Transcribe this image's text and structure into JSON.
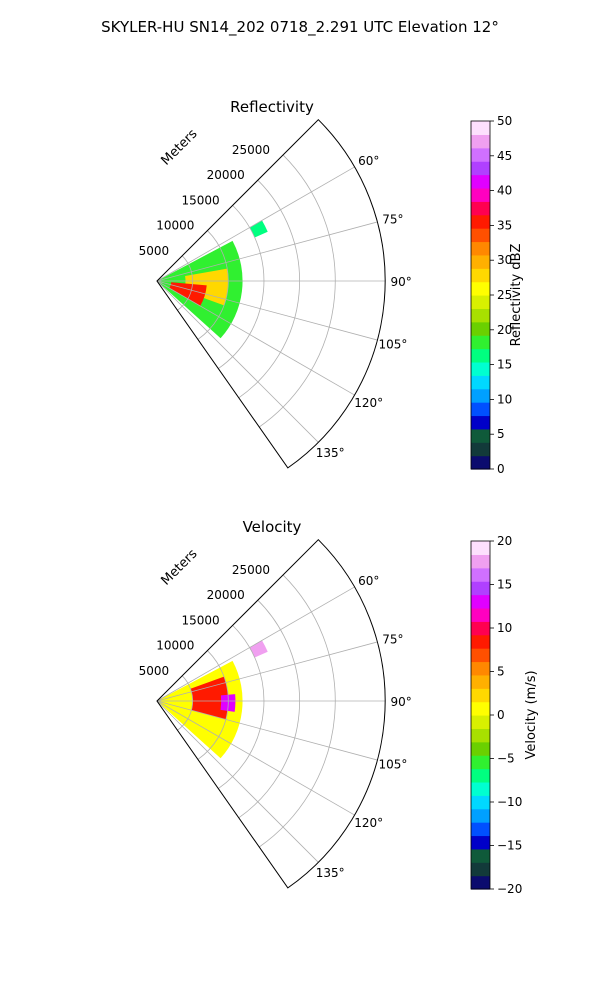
{
  "figure": {
    "suptitle": "SKYLER-HU  SN14_202  0718_2.291 UTC Elevation 12°"
  },
  "chart_data": [
    {
      "type": "heatmap",
      "projection": "polar sector",
      "title": "Reflectivity",
      "radial_label": "Meters",
      "radial_ticks": [
        5000,
        10000,
        15000,
        20000,
        25000
      ],
      "radial_tick_labels": [
        "5000",
        "10000",
        "15000",
        "20000",
        "25000"
      ],
      "rlim": [
        0,
        32000
      ],
      "theta_ticks_deg": [
        60,
        75,
        90,
        105,
        120,
        135
      ],
      "theta_tick_labels": [
        "60°",
        "75°",
        "90°",
        "105°",
        "120°",
        "135°"
      ],
      "theta_range_deg": [
        45,
        145
      ],
      "grid": true,
      "colorbar": {
        "label": "Reflectivity dBZ",
        "range": [
          0,
          50
        ],
        "ticks": [
          0,
          5,
          10,
          15,
          20,
          25,
          30,
          35,
          40,
          45,
          50
        ],
        "tick_labels": [
          "0",
          "5",
          "10",
          "15",
          "20",
          "25",
          "30",
          "35",
          "40",
          "45",
          "50"
        ],
        "colors": [
          "#0b0b6e",
          "#123a3a",
          "#0f5a3a",
          "#0000c8",
          "#0050ff",
          "#00a0ff",
          "#00d8ff",
          "#00ffd0",
          "#00ff80",
          "#30f030",
          "#6ad000",
          "#a8e000",
          "#d8f000",
          "#ffff00",
          "#ffd800",
          "#ffb000",
          "#ff8800",
          "#ff5000",
          "#ff1a00",
          "#ff0050",
          "#ff00c0",
          "#e000ff",
          "#b040ff",
          "#d070ff",
          "#f0a0f0",
          "#fde0fd"
        ]
      },
      "echo_regions": [
        {
          "r_km": [
            0,
            12
          ],
          "theta_deg": [
            62,
            132
          ],
          "dbz": 18
        },
        {
          "r_km": [
            4,
            10
          ],
          "theta_deg": [
            80,
            110
          ],
          "dbz": 27
        },
        {
          "r_km": [
            2,
            7
          ],
          "theta_deg": [
            95,
            120
          ],
          "dbz": 35
        },
        {
          "r_km": [
            15,
            17
          ],
          "theta_deg": [
            60,
            66
          ],
          "dbz": 16
        }
      ]
    },
    {
      "type": "heatmap",
      "projection": "polar sector",
      "title": "Velocity",
      "radial_label": "Meters",
      "radial_ticks": [
        5000,
        10000,
        15000,
        20000,
        25000
      ],
      "radial_tick_labels": [
        "5000",
        "10000",
        "15000",
        "20000",
        "25000"
      ],
      "rlim": [
        0,
        32000
      ],
      "theta_ticks_deg": [
        60,
        75,
        90,
        105,
        120,
        135
      ],
      "theta_tick_labels": [
        "60°",
        "75°",
        "90°",
        "105°",
        "120°",
        "135°"
      ],
      "theta_range_deg": [
        45,
        145
      ],
      "grid": true,
      "colorbar": {
        "label": "Velocity (m/s)",
        "range": [
          -20,
          20
        ],
        "ticks": [
          -20,
          -15,
          -10,
          -5,
          0,
          5,
          10,
          15,
          20
        ],
        "tick_labels": [
          "−20",
          "−15",
          "−10",
          "−5",
          "0",
          "5",
          "10",
          "15",
          "20"
        ],
        "colors": [
          "#0b0b6e",
          "#123a3a",
          "#0f5a3a",
          "#0000c8",
          "#0050ff",
          "#00a0ff",
          "#00d8ff",
          "#00ffd0",
          "#00ff80",
          "#30f030",
          "#6ad000",
          "#a8e000",
          "#d8f000",
          "#ffff00",
          "#ffd800",
          "#ffb000",
          "#ff8800",
          "#ff5000",
          "#ff1a00",
          "#ff0050",
          "#ff00c0",
          "#e000ff",
          "#b040ff",
          "#d070ff",
          "#f0a0f0",
          "#fde0fd"
        ]
      },
      "echo_regions": [
        {
          "r_km": [
            0,
            12
          ],
          "theta_deg": [
            62,
            132
          ],
          "ms": 1
        },
        {
          "r_km": [
            5,
            10
          ],
          "theta_deg": [
            70,
            105
          ],
          "ms": 9
        },
        {
          "r_km": [
            9,
            11
          ],
          "theta_deg": [
            85,
            98
          ],
          "ms": 13
        },
        {
          "r_km": [
            15,
            17
          ],
          "theta_deg": [
            60,
            66
          ],
          "ms": 17
        }
      ]
    }
  ]
}
